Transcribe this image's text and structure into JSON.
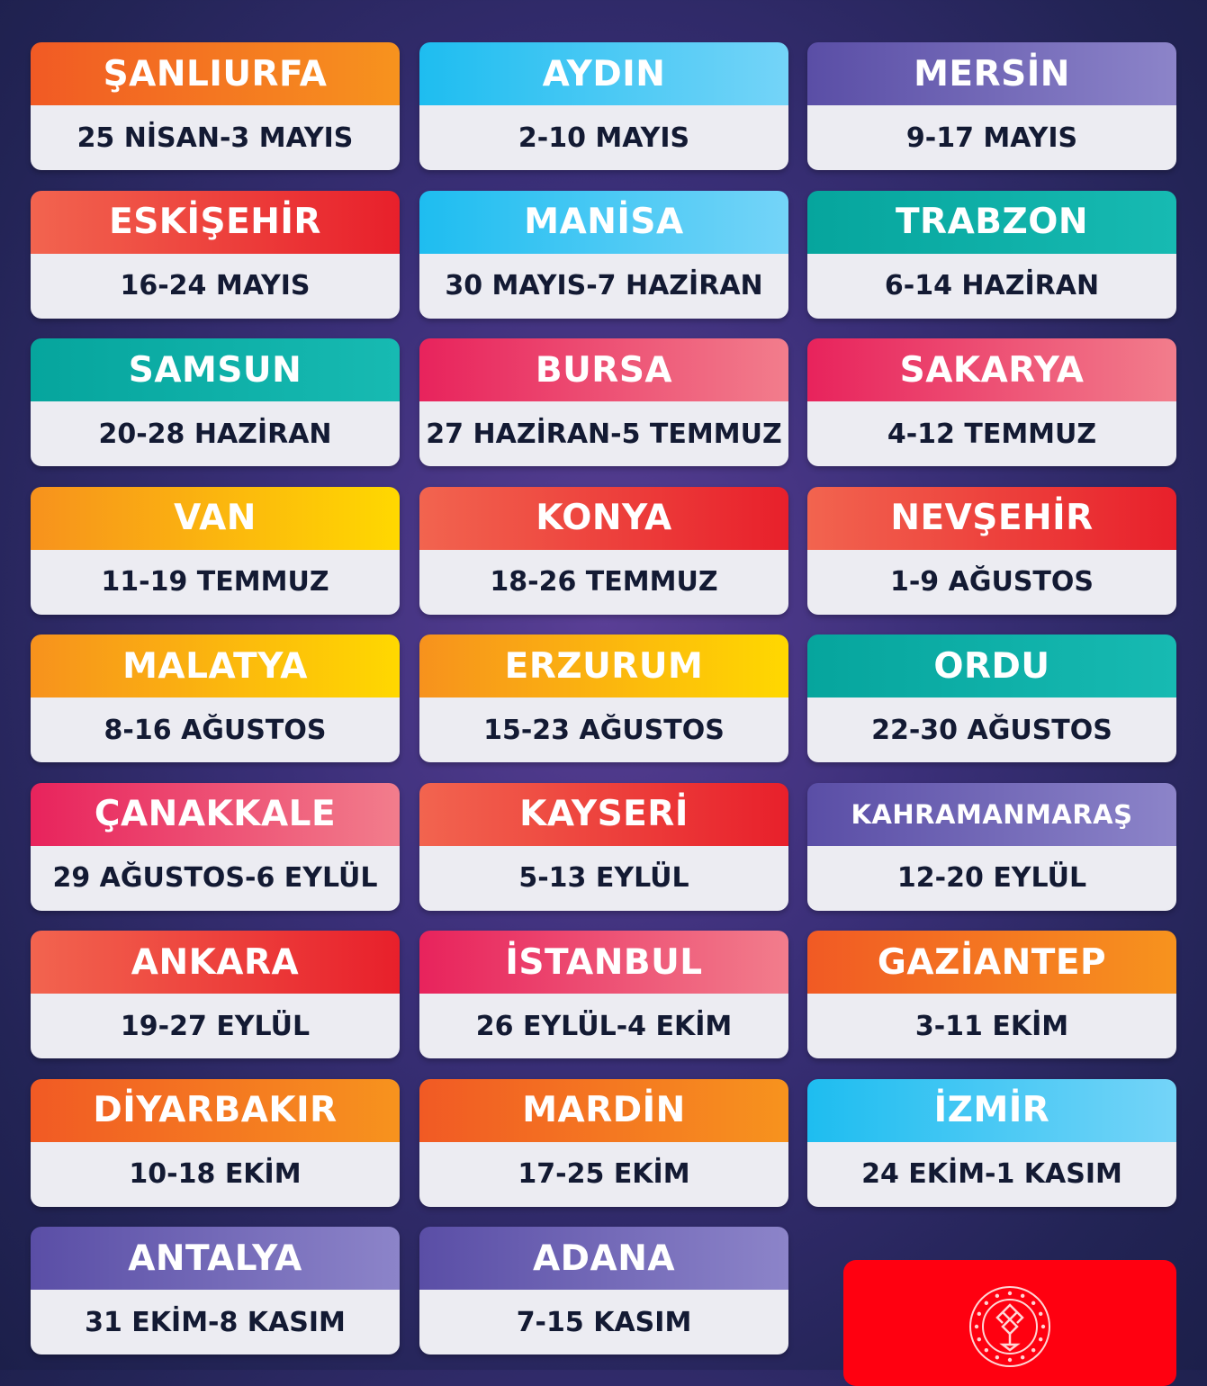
{
  "colors": {
    "orange": [
      "#f15a24",
      "#f7931e"
    ],
    "cyan": [
      "#1ebdf0",
      "#74d4f8"
    ],
    "purple": [
      "#5a4ea6",
      "#8c84c9"
    ],
    "red": [
      "#f2644f",
      "#e8202b"
    ],
    "teal": [
      "#06a59d",
      "#17bab2"
    ],
    "pink": [
      "#e8235c",
      "#f27d8c"
    ],
    "yellow": [
      "#f7921d",
      "#ffd800"
    ],
    "logo_bg": "#ff0010"
  },
  "events": [
    {
      "city": "ŞANLIURFA",
      "dates": "25 NİSAN-3 MAYIS",
      "color": "orange"
    },
    {
      "city": "AYDIN",
      "dates": "2-10 MAYIS",
      "color": "cyan"
    },
    {
      "city": "MERSİN",
      "dates": "9-17 MAYIS",
      "color": "purple"
    },
    {
      "city": "ESKİŞEHİR",
      "dates": "16-24 MAYIS",
      "color": "red"
    },
    {
      "city": "MANİSA",
      "dates": "30 MAYIS-7 HAZİRAN",
      "color": "cyan"
    },
    {
      "city": "TRABZON",
      "dates": "6-14 HAZİRAN",
      "color": "teal"
    },
    {
      "city": "SAMSUN",
      "dates": "20-28 HAZİRAN",
      "color": "teal"
    },
    {
      "city": "BURSA",
      "dates": "27 HAZİRAN-5 TEMMUZ",
      "color": "pink"
    },
    {
      "city": "SAKARYA",
      "dates": "4-12 TEMMUZ",
      "color": "pink"
    },
    {
      "city": "VAN",
      "dates": "11-19 TEMMUZ",
      "color": "yellow"
    },
    {
      "city": "KONYA",
      "dates": "18-26 TEMMUZ",
      "color": "red"
    },
    {
      "city": "NEVŞEHİR",
      "dates": "1-9 AĞUSTOS",
      "color": "red"
    },
    {
      "city": "MALATYA",
      "dates": "8-16 AĞUSTOS",
      "color": "yellow"
    },
    {
      "city": "ERZURUM",
      "dates": "15-23 AĞUSTOS",
      "color": "yellow"
    },
    {
      "city": "ORDU",
      "dates": "22-30 AĞUSTOS",
      "color": "teal"
    },
    {
      "city": "ÇANAKKALE",
      "dates": "29 AĞUSTOS-6 EYLÜL",
      "color": "pink"
    },
    {
      "city": "KAYSERİ",
      "dates": "5-13 EYLÜL",
      "color": "red"
    },
    {
      "city": "KAHRAMANMARAŞ",
      "dates": "12-20 EYLÜL",
      "color": "purple"
    },
    {
      "city": "ANKARA",
      "dates": "19-27 EYLÜL",
      "color": "red"
    },
    {
      "city": "İSTANBUL",
      "dates": "26 EYLÜL-4 EKİM",
      "color": "pink"
    },
    {
      "city": "GAZİANTEP",
      "dates": "3-11 EKİM",
      "color": "orange"
    },
    {
      "city": "DİYARBAKIR",
      "dates": "10-18 EKİM",
      "color": "orange"
    },
    {
      "city": "MARDİN",
      "dates": "17-25 EKİM",
      "color": "orange"
    },
    {
      "city": "İZMİR",
      "dates": "24 EKİM-1 KASIM",
      "color": "cyan"
    },
    {
      "city": "ANTALYA",
      "dates": "31 EKİM-8 KASIM",
      "color": "purple"
    },
    {
      "city": "ADANA",
      "dates": "7-15 KASIM",
      "color": "purple"
    }
  ],
  "logo": {
    "icon": "ministry-emblem-icon"
  }
}
